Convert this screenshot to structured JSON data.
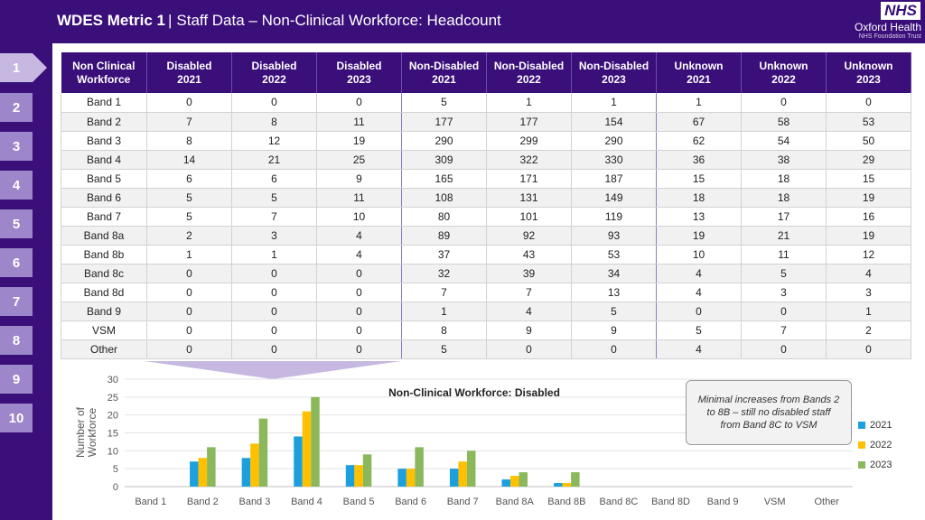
{
  "header": {
    "metric": "WDES Metric 1",
    "separator": "|",
    "subtitle": "Staff Data – Non-Clinical Workforce: Headcount",
    "logo": "NHS",
    "org_name": "Oxford Health",
    "org_sub": "NHS Foundation Trust"
  },
  "nav": {
    "items": [
      "1",
      "2",
      "3",
      "4",
      "5",
      "6",
      "7",
      "8",
      "9",
      "10"
    ],
    "active": "1"
  },
  "table": {
    "headers": [
      [
        "Non Clinical",
        "Workforce"
      ],
      [
        "Disabled",
        "2021"
      ],
      [
        "Disabled",
        "2022"
      ],
      [
        "Disabled",
        "2023"
      ],
      [
        "Non-Disabled",
        "2021"
      ],
      [
        "Non-Disabled",
        "2022"
      ],
      [
        "Non-Disabled",
        "2023"
      ],
      [
        "Unknown",
        "2021"
      ],
      [
        "Unknown",
        "2022"
      ],
      [
        "Unknown",
        "2023"
      ]
    ],
    "rows": [
      [
        "Band 1",
        "0",
        "0",
        "0",
        "5",
        "1",
        "1",
        "1",
        "0",
        "0"
      ],
      [
        "Band 2",
        "7",
        "8",
        "11",
        "177",
        "177",
        "154",
        "67",
        "58",
        "53"
      ],
      [
        "Band 3",
        "8",
        "12",
        "19",
        "290",
        "299",
        "290",
        "62",
        "54",
        "50"
      ],
      [
        "Band 4",
        "14",
        "21",
        "25",
        "309",
        "322",
        "330",
        "36",
        "38",
        "29"
      ],
      [
        "Band 5",
        "6",
        "6",
        "9",
        "165",
        "171",
        "187",
        "15",
        "18",
        "15"
      ],
      [
        "Band 6",
        "5",
        "5",
        "11",
        "108",
        "131",
        "149",
        "18",
        "18",
        "19"
      ],
      [
        "Band 7",
        "5",
        "7",
        "10",
        "80",
        "101",
        "119",
        "13",
        "17",
        "16"
      ],
      [
        "Band 8a",
        "2",
        "3",
        "4",
        "89",
        "92",
        "93",
        "19",
        "21",
        "19"
      ],
      [
        "Band 8b",
        "1",
        "1",
        "4",
        "37",
        "43",
        "53",
        "10",
        "11",
        "12"
      ],
      [
        "Band 8c",
        "0",
        "0",
        "0",
        "32",
        "39",
        "34",
        "4",
        "5",
        "4"
      ],
      [
        "Band 8d",
        "0",
        "0",
        "0",
        "7",
        "7",
        "13",
        "4",
        "3",
        "3"
      ],
      [
        "Band 9",
        "0",
        "0",
        "0",
        "1",
        "4",
        "5",
        "0",
        "0",
        "1"
      ],
      [
        "VSM",
        "0",
        "0",
        "0",
        "8",
        "9",
        "9",
        "5",
        "7",
        "2"
      ],
      [
        "Other",
        "0",
        "0",
        "0",
        "5",
        "0",
        "0",
        "4",
        "0",
        "0"
      ]
    ]
  },
  "callout": "Minimal increases from Bands 2 to 8B – still no disabled staff from Band 8C to VSM",
  "colors": {
    "brand": "#3a0f7a",
    "series": [
      "#1ca0dd",
      "#ffc000",
      "#8ab85a"
    ]
  },
  "chart_data": {
    "type": "bar",
    "title": "Non-Clinical Workforce: Disabled",
    "xlabel": "",
    "ylabel": "Number of Workforce",
    "ylim": [
      0,
      30
    ],
    "yticks": [
      0,
      5,
      10,
      15,
      20,
      25,
      30
    ],
    "grid": true,
    "legend_position": "right",
    "categories": [
      "Band 1",
      "Band 2",
      "Band 3",
      "Band 4",
      "Band 5",
      "Band 6",
      "Band 7",
      "Band 8A",
      "Band 8B",
      "Band 8C",
      "Band 8D",
      "Band 9",
      "VSM",
      "Other"
    ],
    "series": [
      {
        "name": "2021",
        "values": [
          0,
          7,
          8,
          14,
          6,
          5,
          5,
          2,
          1,
          0,
          0,
          0,
          0,
          0
        ]
      },
      {
        "name": "2022",
        "values": [
          0,
          8,
          12,
          21,
          6,
          5,
          7,
          3,
          1,
          0,
          0,
          0,
          0,
          0
        ]
      },
      {
        "name": "2023",
        "values": [
          0,
          11,
          19,
          25,
          9,
          11,
          10,
          4,
          4,
          0,
          0,
          0,
          0,
          0
        ]
      }
    ]
  }
}
